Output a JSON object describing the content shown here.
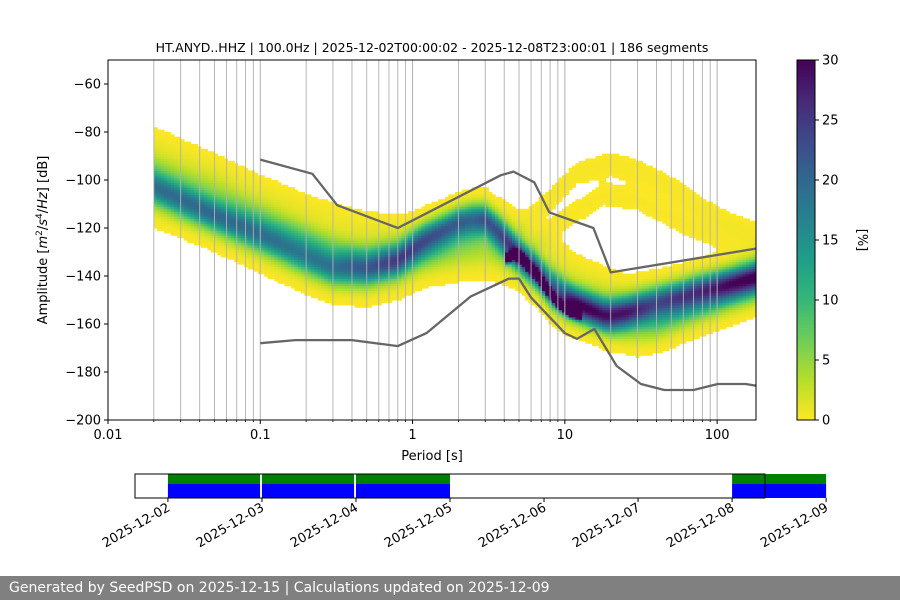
{
  "chart_data": {
    "type": "heatmap",
    "title": "HT.ANYD..HHZ | 100.0Hz | 2025-12-02T00:00:02 - 2025-12-08T23:00:01 | 186 segments",
    "xlabel": "Period [s]",
    "ylabel_parts": [
      "Amplitude [",
      "m",
      "2",
      "/",
      "s",
      "4",
      "/",
      "Hz",
      "] [dB]"
    ],
    "xscale": "log",
    "xlim": [
      0.01,
      180
    ],
    "ylim": [
      -200,
      -50
    ],
    "xticks": [
      {
        "v": 0.01,
        "label": "0.01"
      },
      {
        "v": 0.1,
        "label": "0.1"
      },
      {
        "v": 1,
        "label": "1"
      },
      {
        "v": 10,
        "label": "10"
      },
      {
        "v": 100,
        "label": "100"
      }
    ],
    "yticks": [
      {
        "v": -60,
        "label": "−60"
      },
      {
        "v": -80,
        "label": "−80"
      },
      {
        "v": -100,
        "label": "−100"
      },
      {
        "v": -120,
        "label": "−120"
      },
      {
        "v": -140,
        "label": "−140"
      },
      {
        "v": -160,
        "label": "−160"
      },
      {
        "v": -180,
        "label": "−180"
      },
      {
        "v": -200,
        "label": "−200"
      }
    ],
    "grid": "vertical, log minor",
    "colorbar": {
      "label": "[%]",
      "min": 0,
      "max": 30,
      "ticks": [
        {
          "v": 0,
          "label": "0"
        },
        {
          "v": 5,
          "label": "5"
        },
        {
          "v": 10,
          "label": "10"
        },
        {
          "v": 15,
          "label": "15"
        },
        {
          "v": 20,
          "label": "20"
        },
        {
          "v": 25,
          "label": "25"
        },
        {
          "v": 30,
          "label": "30"
        }
      ],
      "colors": [
        "#fde725",
        "#b5de2b",
        "#6ece58",
        "#35b779",
        "#1f9e89",
        "#26828e",
        "#31688e",
        "#3e4989",
        "#482878",
        "#440154"
      ]
    },
    "density_bands": [
      {
        "weight": 1.0,
        "width": 7,
        "points": [
          [
            0.02,
            -103
          ],
          [
            0.05,
            -115
          ],
          [
            0.1,
            -123
          ],
          [
            0.2,
            -132
          ],
          [
            0.3,
            -137
          ],
          [
            0.5,
            -137
          ],
          [
            0.8,
            -133
          ],
          [
            1.2,
            -124
          ],
          [
            2,
            -117
          ],
          [
            3,
            -116
          ],
          [
            4,
            -124
          ],
          [
            5,
            -131
          ],
          [
            6,
            -136
          ],
          [
            7,
            -141
          ],
          [
            8,
            -148
          ],
          [
            10,
            -152
          ],
          [
            14,
            -155
          ],
          [
            18,
            -157
          ],
          [
            25,
            -155
          ],
          [
            40,
            -150
          ],
          [
            70,
            -145
          ],
          [
            100,
            -143
          ],
          [
            180,
            -140
          ]
        ]
      },
      {
        "weight": 0.75,
        "width": 8,
        "points": [
          [
            0.02,
            -99
          ],
          [
            0.05,
            -110
          ],
          [
            0.1,
            -118
          ],
          [
            0.2,
            -126
          ],
          [
            0.3,
            -131
          ],
          [
            0.5,
            -134
          ],
          [
            0.8,
            -133
          ],
          [
            1.2,
            -128
          ],
          [
            2,
            -122
          ],
          [
            3,
            -119
          ],
          [
            4,
            -125
          ],
          [
            5,
            -132
          ],
          [
            7,
            -141
          ],
          [
            10,
            -149
          ],
          [
            20,
            -156
          ],
          [
            40,
            -154
          ],
          [
            100,
            -147
          ],
          [
            180,
            -141
          ]
        ]
      },
      {
        "weight": 0.55,
        "width": 8,
        "points": [
          [
            0.02,
            -108
          ],
          [
            0.05,
            -118
          ],
          [
            0.1,
            -127
          ],
          [
            0.2,
            -136
          ],
          [
            0.3,
            -140
          ],
          [
            0.5,
            -141
          ],
          [
            0.8,
            -138
          ],
          [
            1.2,
            -133
          ],
          [
            2,
            -131
          ],
          [
            3,
            -130
          ],
          [
            4,
            -132
          ],
          [
            5,
            -134
          ],
          [
            7,
            -140
          ],
          [
            10,
            -147
          ],
          [
            20,
            -158
          ],
          [
            40,
            -160
          ],
          [
            100,
            -150
          ],
          [
            180,
            -144
          ]
        ]
      },
      {
        "weight": 0.35,
        "width": 6,
        "points": [
          [
            0.02,
            -92
          ],
          [
            0.05,
            -102
          ],
          [
            0.1,
            -112
          ],
          [
            0.2,
            -121
          ],
          [
            0.4,
            -128
          ],
          [
            0.8,
            -128
          ],
          [
            1.5,
            -120
          ],
          [
            2.5,
            -113
          ],
          [
            3.5,
            -118
          ],
          [
            5,
            -127
          ],
          [
            8,
            -138
          ],
          [
            12,
            -148
          ],
          [
            25,
            -152
          ],
          [
            60,
            -148
          ],
          [
            180,
            -138
          ]
        ]
      },
      {
        "weight": 0.2,
        "width": 6,
        "points": [
          [
            0.02,
            -84
          ],
          [
            0.05,
            -95
          ],
          [
            0.1,
            -104
          ],
          [
            0.2,
            -112
          ],
          [
            0.4,
            -118
          ],
          [
            0.8,
            -121
          ],
          [
            1.5,
            -118
          ],
          [
            3,
            -112
          ],
          [
            5,
            -119
          ],
          [
            8,
            -128
          ],
          [
            12,
            -137
          ],
          [
            25,
            -146
          ],
          [
            60,
            -145
          ],
          [
            180,
            -136
          ]
        ]
      },
      {
        "weight": 0.15,
        "width": 5,
        "points": [
          [
            5,
            -120
          ],
          [
            8,
            -108
          ],
          [
            12,
            -97
          ],
          [
            20,
            -93
          ],
          [
            30,
            -96
          ],
          [
            50,
            -103
          ],
          [
            80,
            -112
          ],
          [
            120,
            -118
          ],
          [
            180,
            -122
          ]
        ]
      },
      {
        "weight": 0.12,
        "width": 6,
        "points": [
          [
            6,
            -128
          ],
          [
            10,
            -116
          ],
          [
            18,
            -106
          ],
          [
            30,
            -108
          ],
          [
            60,
            -118
          ],
          [
            120,
            -125
          ],
          [
            180,
            -128
          ]
        ]
      },
      {
        "weight": 0.22,
        "width": 6,
        "points": [
          [
            10,
            -150
          ],
          [
            20,
            -162
          ],
          [
            30,
            -166
          ],
          [
            50,
            -160
          ],
          [
            100,
            -152
          ],
          [
            180,
            -148
          ]
        ]
      },
      {
        "weight": 2.6,
        "width": 2,
        "points": [
          [
            4,
            -133
          ],
          [
            4.6,
            -131
          ],
          [
            5.2,
            -132
          ],
          [
            5.8,
            -136
          ],
          [
            6.5,
            -139
          ],
          [
            7.5,
            -145
          ],
          [
            9,
            -151
          ],
          [
            11,
            -155
          ],
          [
            13,
            -156
          ]
        ]
      }
    ],
    "noise_models": [
      {
        "name": "high",
        "points": [
          [
            0.1,
            -91.5
          ],
          [
            0.22,
            -97.4
          ],
          [
            0.32,
            -110.5
          ],
          [
            0.8,
            -120
          ],
          [
            3.8,
            -98
          ],
          [
            4.6,
            -96.5
          ],
          [
            6.3,
            -101
          ],
          [
            7.9,
            -113.5
          ],
          [
            15.4,
            -120
          ],
          [
            20,
            -138.5
          ],
          [
            180,
            -128.6
          ]
        ]
      },
      {
        "name": "low",
        "points": [
          [
            0.1,
            -168
          ],
          [
            0.17,
            -166.7
          ],
          [
            0.4,
            -166.7
          ],
          [
            0.8,
            -169.2
          ],
          [
            1.24,
            -163.7
          ],
          [
            2.4,
            -148.6
          ],
          [
            4.3,
            -141.1
          ],
          [
            5,
            -141.1
          ],
          [
            6,
            -149
          ],
          [
            10,
            -163.8
          ],
          [
            12,
            -166.2
          ],
          [
            15.6,
            -162.1
          ],
          [
            21.9,
            -177.5
          ],
          [
            31.6,
            -185
          ],
          [
            45,
            -187.5
          ],
          [
            70,
            -187.5
          ],
          [
            101,
            -185
          ],
          [
            154,
            -185
          ],
          [
            180,
            -185.7
          ]
        ]
      }
    ],
    "availability": {
      "ticks": [
        "2025-12-02",
        "2025-12-03",
        "2025-12-04",
        "2025-12-05",
        "2025-12-06",
        "2025-12-07",
        "2025-12-08",
        "2025-12-09"
      ],
      "range": [
        -0.35,
        6.35
      ],
      "segments": [
        {
          "start": 0.0,
          "end": 0.98
        },
        {
          "start": 1.0,
          "end": 1.98
        },
        {
          "start": 2.0,
          "end": 3.0
        },
        {
          "start": 6.0,
          "end": 7.0
        }
      ],
      "colors": {
        "top": "#008000",
        "bottom": "#0000ff"
      }
    }
  },
  "footer": {
    "text": "Generated by SeedPSD on 2025-12-15 | Calculations updated on 2025-12-09"
  }
}
